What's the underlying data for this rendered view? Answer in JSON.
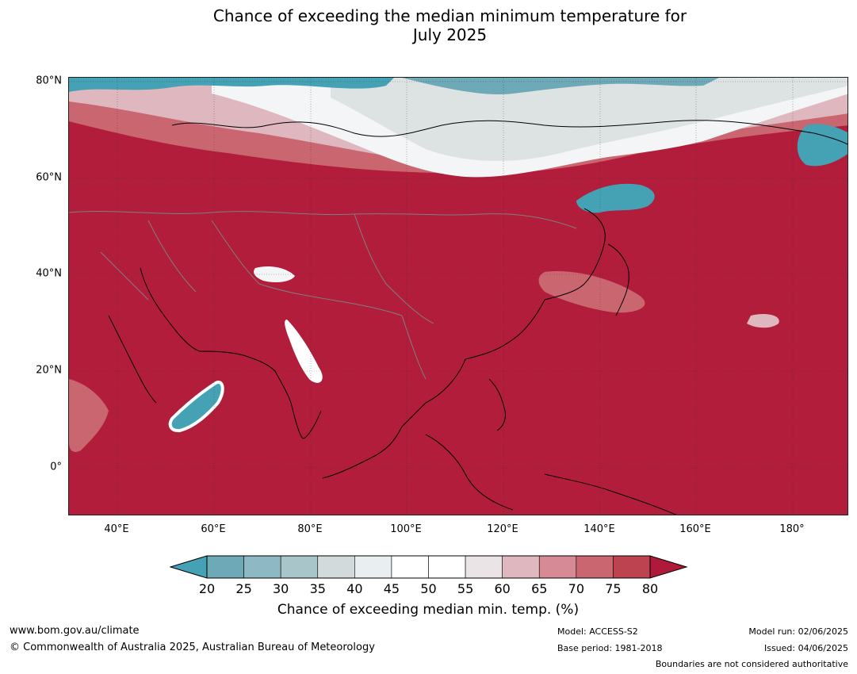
{
  "title_line1": "Chance of exceeding the median minimum temperature for",
  "title_line2": "July 2025",
  "map": {
    "lat_labels": [
      "80°N",
      "60°N",
      "40°N",
      "20°N",
      "0°"
    ],
    "lon_labels": [
      "40°E",
      "60°E",
      "80°E",
      "100°E",
      "120°E",
      "140°E",
      "160°E",
      "180°"
    ],
    "colors": {
      "ocean_high": "#b11d3a",
      "low_blue": "#4aa3b4",
      "neutral_white": "#ffffff",
      "coast": "#000000",
      "border": "#7f7f7f",
      "grid": "#333333"
    }
  },
  "colorbar": {
    "ticks": [
      "20",
      "25",
      "30",
      "35",
      "40",
      "45",
      "50",
      "55",
      "60",
      "65",
      "70",
      "75",
      "80"
    ],
    "colors": [
      "#45a2b5",
      "#6ea9b8",
      "#8db8c4",
      "#a8c5ca",
      "#d3dadb",
      "#e9eff1",
      "#ffffff",
      "#ffffff",
      "#ebe4e6",
      "#dfb8bf",
      "#d58a95",
      "#c96670",
      "#bd4350",
      "#b01a3a"
    ],
    "label": "Chance of exceeding median min. temp. (%)"
  },
  "footer": {
    "website": "www.bom.gov.au/climate",
    "copyright": "© Commonwealth of Australia 2025, Australian Bureau of Meteorology",
    "model": "Model: ACCESS-S2",
    "base_period": "Base period: 1981-2018",
    "model_run": "Model run: 02/06/2025",
    "issued": "Issued: 04/06/2025",
    "boundaries": "Boundaries are not considered authoritative"
  }
}
